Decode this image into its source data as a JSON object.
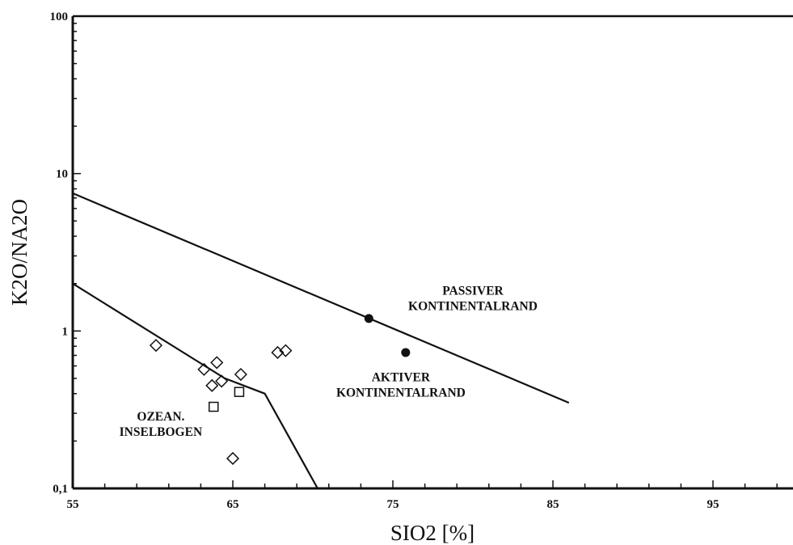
{
  "chart_data": {
    "type": "scatter",
    "title": "",
    "xlabel": "SIO2  [%]",
    "ylabel": "K2O/NA2O",
    "xscale": "linear",
    "yscale": "log",
    "xlim": [
      55,
      100
    ],
    "ylim": [
      0.1,
      100
    ],
    "grid": false,
    "x_ticks": [
      55,
      65,
      75,
      85,
      95
    ],
    "x_tick_labels": [
      "55",
      "65",
      "75",
      "85",
      "95"
    ],
    "y_ticks": [
      0.1,
      1,
      10,
      100
    ],
    "y_tick_labels": [
      "0,1",
      "1",
      "10",
      "100"
    ],
    "boundary_lines": [
      {
        "points": [
          [
            55,
            7.5
          ],
          [
            86,
            0.35
          ]
        ]
      },
      {
        "points": [
          [
            55,
            2.0
          ],
          [
            64.5,
            0.5
          ],
          [
            67,
            0.4
          ],
          [
            70.3,
            0.1
          ]
        ]
      }
    ],
    "series": [
      {
        "marker": "diamond-open",
        "points": [
          [
            60.2,
            0.81
          ],
          [
            63.2,
            0.57
          ],
          [
            64.0,
            0.63
          ],
          [
            63.7,
            0.45
          ],
          [
            64.3,
            0.48
          ],
          [
            65.5,
            0.53
          ],
          [
            65.0,
            0.155
          ],
          [
            67.8,
            0.73
          ],
          [
            68.3,
            0.75
          ]
        ]
      },
      {
        "marker": "square-open",
        "points": [
          [
            63.8,
            0.33
          ],
          [
            65.4,
            0.41
          ]
        ]
      },
      {
        "marker": "circle-filled",
        "points": [
          [
            73.5,
            1.2
          ],
          [
            75.8,
            0.73
          ]
        ]
      }
    ],
    "annotations": [
      {
        "lines": [
          "PASSIVER",
          "KONTINENTALRAND"
        ],
        "x": 80,
        "y": 1.7
      },
      {
        "lines": [
          "AKTIVER",
          "KONTINENTALRAND"
        ],
        "x": 75.5,
        "y": 0.48
      },
      {
        "lines": [
          "OZEAN.",
          "INSELBOGEN"
        ],
        "x": 60.5,
        "y": 0.27
      }
    ]
  }
}
